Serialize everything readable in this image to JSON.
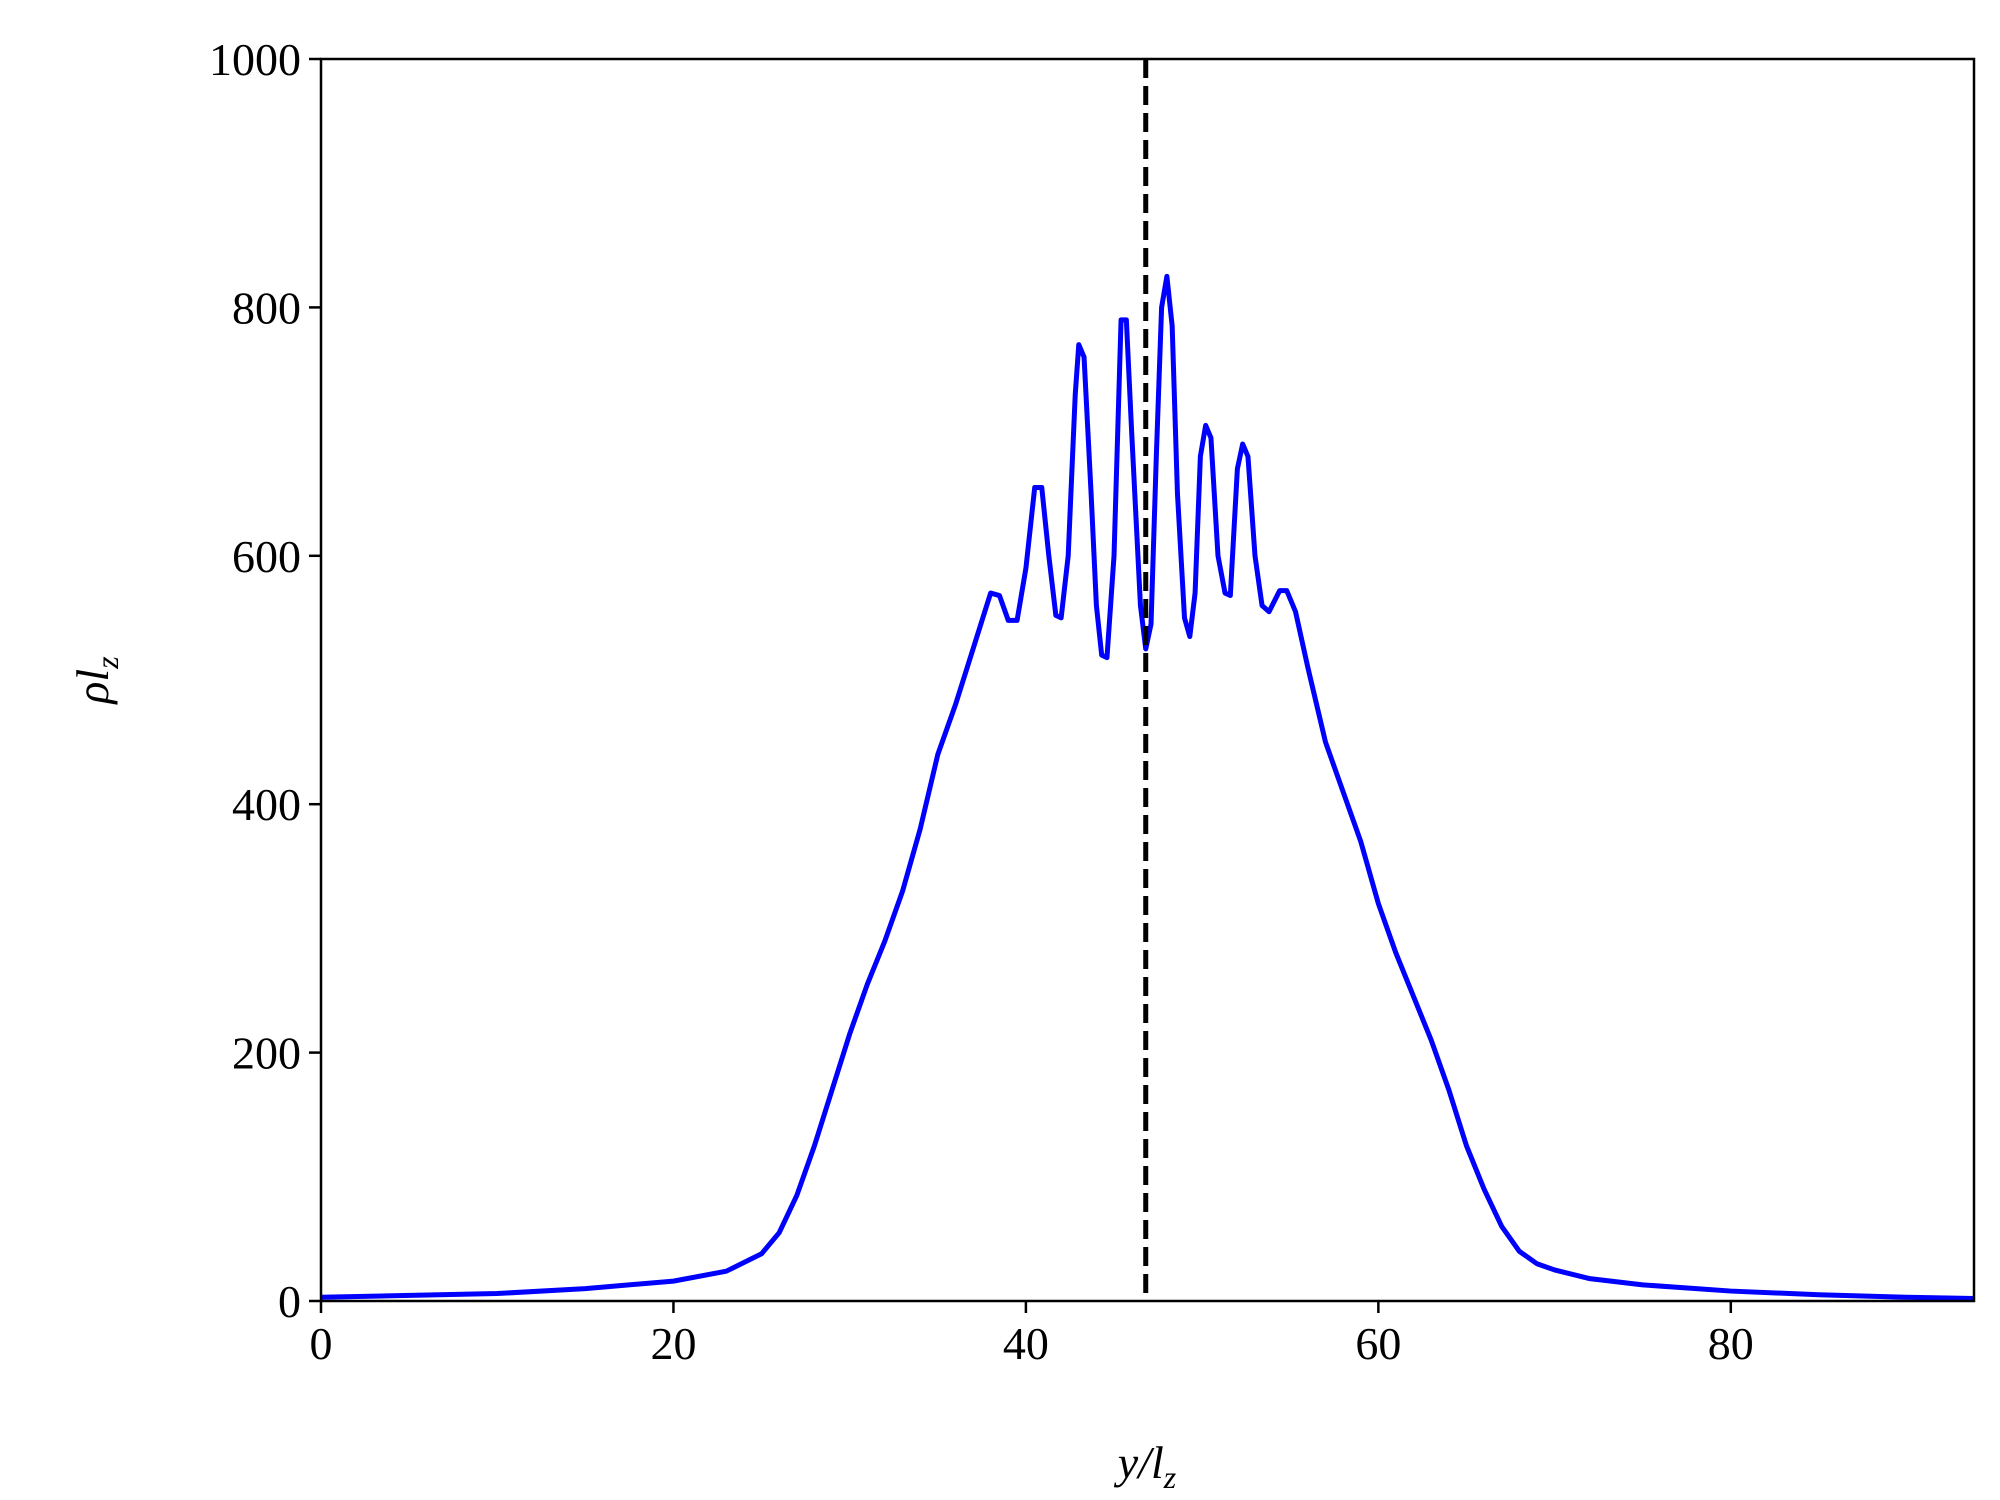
{
  "chart_data": {
    "type": "line",
    "xlabel": {
      "text": "y/l",
      "subscript": "z"
    },
    "ylabel": {
      "text": "ρl",
      "subscript": "z"
    },
    "x": [
      0,
      10,
      15,
      20,
      23,
      25,
      26,
      27,
      28,
      29,
      30,
      31,
      32,
      33,
      34,
      35,
      36,
      37,
      38,
      38.5,
      39,
      39.5,
      40,
      40.5,
      40.9,
      41.3,
      41.7,
      42,
      42.4,
      42.8,
      43,
      43.3,
      43.7,
      44,
      44.3,
      44.6,
      45,
      45.4,
      45.7,
      46,
      46.5,
      46.8,
      47.1,
      47.4,
      47.7,
      48,
      48.3,
      48.6,
      49,
      49.3,
      49.6,
      49.9,
      50.2,
      50.5,
      50.9,
      51.3,
      51.6,
      52,
      52.3,
      52.6,
      53,
      53.4,
      53.8,
      54.4,
      54.8,
      55.3,
      56,
      57,
      58,
      59,
      60,
      61,
      62,
      63,
      64,
      65,
      66,
      67,
      68,
      69,
      70,
      72,
      75,
      80,
      85,
      90,
      93.8
    ],
    "series": [
      {
        "color": "#0000ff",
        "values": [
          3,
          6,
          10,
          16,
          24,
          38,
          55,
          85,
          125,
          170,
          215,
          255,
          290,
          330,
          380,
          440,
          480,
          525,
          570,
          568,
          548,
          548,
          590,
          655,
          655,
          600,
          552,
          550,
          600,
          730,
          770,
          760,
          650,
          560,
          520,
          518,
          600,
          790,
          790,
          700,
          560,
          525,
          545,
          680,
          800,
          825,
          785,
          650,
          550,
          535,
          570,
          680,
          705,
          695,
          600,
          570,
          568,
          670,
          690,
          680,
          600,
          560,
          555,
          572,
          572,
          555,
          510,
          450,
          410,
          370,
          320,
          280,
          245,
          210,
          170,
          125,
          90,
          60,
          40,
          30,
          25,
          18,
          13,
          8,
          5,
          3,
          2
        ]
      }
    ],
    "vline": 46.8,
    "xlim": [
      0,
      93.8
    ],
    "ylim": [
      0,
      1000
    ],
    "xticks": [
      0,
      20,
      40,
      60,
      80
    ],
    "yticks": [
      0,
      200,
      400,
      600,
      800,
      1000
    ]
  }
}
